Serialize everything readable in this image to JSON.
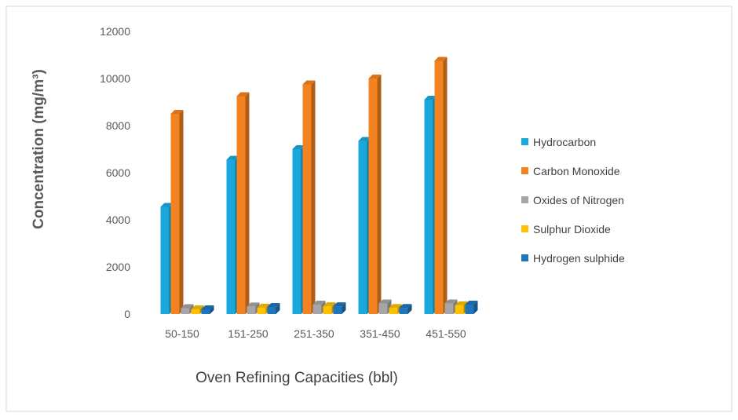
{
  "chart_data": {
    "type": "bar",
    "title": "",
    "xlabel": "Oven Refining Capacities (bbl)",
    "ylabel": "Concentration (mg/m³)",
    "ylim": [
      0,
      12000
    ],
    "yticks": [
      0,
      2000,
      4000,
      6000,
      8000,
      10000,
      12000
    ],
    "grid": false,
    "legend_position": "right",
    "categories": [
      "50-150",
      "151-250",
      "251-350",
      "351-450",
      "451-550"
    ],
    "series": [
      {
        "name": "Hydrocarbon",
        "color": "#1aa8dc",
        "values": [
          4550,
          6550,
          7000,
          7350,
          9100
        ]
      },
      {
        "name": "Carbon Monoxide",
        "color": "#f58220",
        "values": [
          8500,
          9250,
          9750,
          10000,
          10750
        ]
      },
      {
        "name": "Oxides of Nitrogen",
        "color": "#a6a6a6",
        "values": [
          250,
          320,
          400,
          450,
          450
        ]
      },
      {
        "name": "Sulphur Dioxide",
        "color": "#ffc000",
        "values": [
          200,
          270,
          330,
          260,
          370
        ]
      },
      {
        "name": "Hydrogen sulphide",
        "color": "#1f74bc",
        "values": [
          200,
          300,
          330,
          260,
          400
        ]
      }
    ]
  }
}
